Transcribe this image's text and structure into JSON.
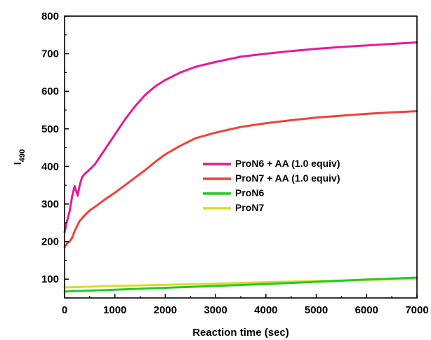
{
  "chart_data": {
    "type": "line",
    "xlabel": "Reaction time (sec)",
    "ylabel_main": "I",
    "ylabel_sub": "490",
    "xlim": [
      0,
      7000
    ],
    "ylim": [
      50,
      800
    ],
    "x_ticks": [
      0,
      1000,
      2000,
      3000,
      4000,
      5000,
      6000,
      7000
    ],
    "y_ticks": [
      100,
      200,
      300,
      400,
      500,
      600,
      700,
      800
    ],
    "grid": false,
    "legend_position": "center-right",
    "series": [
      {
        "name": "ProN6 + AA (1.0 equiv)",
        "color": "#e6199a",
        "x": [
          0,
          50,
          100,
          150,
          200,
          230,
          260,
          300,
          350,
          400,
          500,
          600,
          700,
          800,
          1000,
          1200,
          1400,
          1600,
          1800,
          2000,
          2300,
          2600,
          3000,
          3500,
          4000,
          4500,
          5000,
          5500,
          6000,
          6500,
          7000
        ],
        "y": [
          225,
          255,
          280,
          320,
          348,
          335,
          322,
          350,
          372,
          380,
          392,
          405,
          425,
          445,
          485,
          525,
          560,
          590,
          613,
          630,
          650,
          665,
          678,
          692,
          700,
          707,
          713,
          718,
          722,
          726,
          730
        ]
      },
      {
        "name": "ProN7 + AA (1.0 equiv)",
        "color": "#f0413a",
        "x": [
          0,
          50,
          100,
          150,
          200,
          300,
          400,
          500,
          600,
          800,
          1000,
          1200,
          1400,
          1600,
          1800,
          2000,
          2300,
          2600,
          3000,
          3500,
          4000,
          4500,
          5000,
          5500,
          6000,
          6500,
          7000
        ],
        "y": [
          185,
          195,
          200,
          210,
          228,
          255,
          270,
          283,
          292,
          312,
          330,
          350,
          370,
          390,
          412,
          432,
          455,
          475,
          490,
          505,
          515,
          523,
          530,
          535,
          540,
          544,
          547
        ]
      },
      {
        "name": "ProN6",
        "color": "#22cc22",
        "x": [
          0,
          1000,
          2000,
          3000,
          4000,
          5000,
          6000,
          7000
        ],
        "y": [
          67,
          72,
          77,
          82,
          87,
          93,
          99,
          104
        ]
      },
      {
        "name": "ProN7",
        "color": "#d8dc2a",
        "x": [
          0,
          1000,
          2000,
          3000,
          4000,
          5000,
          6000,
          7000
        ],
        "y": [
          78,
          82,
          85,
          88,
          92,
          95,
          98,
          101
        ]
      }
    ]
  }
}
